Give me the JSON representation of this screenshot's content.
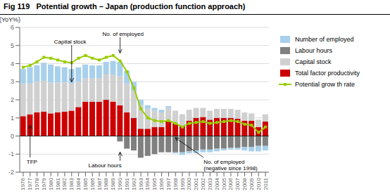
{
  "chart_data": {
    "type": "bar",
    "title": "Fig 119   Potential growth – Japan (production function approach)",
    "ylabel": "(YoY%)",
    "categories": [
      1976,
      1977,
      1978,
      1979,
      1980,
      1981,
      1982,
      1983,
      1984,
      1985,
      1986,
      1987,
      1988,
      1989,
      1990,
      1991,
      1992,
      1993,
      1994,
      1995,
      1996,
      1997,
      1998,
      1999,
      2000,
      2001,
      2002,
      2003,
      2004,
      2005,
      2006,
      2007,
      2008,
      2009,
      2010,
      2011
    ],
    "series": [
      {
        "name": "Number of employed",
        "type": "bar",
        "color": "#a8d0ec",
        "values": [
          0.8,
          0.9,
          0.9,
          1.0,
          1.0,
          0.9,
          0.85,
          0.8,
          0.8,
          0.75,
          0.7,
          0.7,
          0.7,
          0.75,
          0.8,
          0.7,
          0.5,
          0.3,
          0.2,
          0.15,
          0.15,
          0.1,
          -0.05,
          -0.15,
          -0.1,
          -0.15,
          -0.15,
          -0.15,
          -0.15,
          -0.1,
          -0.1,
          -0.1,
          -0.2,
          -0.25,
          -0.3,
          -0.25
        ]
      },
      {
        "name": "Labour hours",
        "type": "bar",
        "color": "#808080",
        "values": [
          0.0,
          0.0,
          0.0,
          0.0,
          0.0,
          0.0,
          0.0,
          0.0,
          0.0,
          0.0,
          0.0,
          0.0,
          0.0,
          0.0,
          -0.3,
          -0.7,
          -0.8,
          -1.2,
          -1.1,
          -1.0,
          -0.9,
          -0.9,
          -0.9,
          -0.9,
          -0.85,
          -0.8,
          -0.75,
          -0.75,
          -0.7,
          -0.7,
          -0.65,
          -0.65,
          -0.6,
          -0.6,
          -0.55,
          -0.55
        ]
      },
      {
        "name": "Capital stock",
        "type": "bar",
        "color": "#d0d0d0",
        "values": [
          1.8,
          1.7,
          1.7,
          1.7,
          1.7,
          1.65,
          1.6,
          1.5,
          1.4,
          1.3,
          1.3,
          1.3,
          1.4,
          1.5,
          1.6,
          1.6,
          1.5,
          1.3,
          1.1,
          0.9,
          0.8,
          0.75,
          0.7,
          0.65,
          0.6,
          0.55,
          0.5,
          0.5,
          0.5,
          0.5,
          0.5,
          0.5,
          0.45,
          0.4,
          0.4,
          0.4
        ]
      },
      {
        "name": "Total factor productivity",
        "type": "bar",
        "color": "#cc0000",
        "values": [
          1.1,
          1.2,
          1.3,
          1.35,
          1.25,
          1.3,
          1.35,
          1.4,
          1.6,
          1.9,
          1.9,
          1.9,
          2.0,
          1.9,
          1.7,
          1.3,
          1.0,
          0.4,
          0.4,
          0.5,
          0.5,
          0.8,
          0.7,
          0.55,
          0.85,
          1.0,
          1.05,
          0.9,
          1.0,
          1.0,
          1.0,
          0.95,
          0.85,
          0.85,
          0.5,
          0.8
        ]
      },
      {
        "name": "Potential grow th rate",
        "type": "line",
        "color": "#99cc00",
        "marker": "square",
        "values": [
          3.8,
          3.9,
          4.1,
          4.35,
          4.3,
          4.2,
          4.1,
          4.05,
          4.3,
          4.45,
          4.3,
          4.2,
          4.35,
          4.45,
          4.15,
          3.55,
          2.65,
          1.5,
          1.0,
          0.85,
          0.8,
          0.85,
          0.7,
          0.5,
          0.7,
          0.75,
          0.8,
          0.7,
          0.75,
          0.8,
          0.85,
          0.8,
          0.65,
          0.6,
          0.2,
          0.5
        ]
      }
    ],
    "stacked": true,
    "ylim": [
      -2,
      6
    ],
    "yticks": [
      -2,
      -1,
      0,
      1,
      2,
      3,
      4,
      5,
      6
    ],
    "grid": true,
    "legend": "right",
    "annotations": [
      {
        "text": "Capital stock",
        "x": 1983,
        "y": 3.0
      },
      {
        "text": "No. of employed",
        "x": 1990,
        "y": 4.6
      },
      {
        "text": "TFP",
        "x": 1977,
        "y": 0.6
      },
      {
        "text": "Labour hours",
        "x": 1990,
        "y": -0.9
      },
      {
        "text": "No. of employed\n(negative since 1998)",
        "x": 1998,
        "y": -0.1
      }
    ]
  }
}
